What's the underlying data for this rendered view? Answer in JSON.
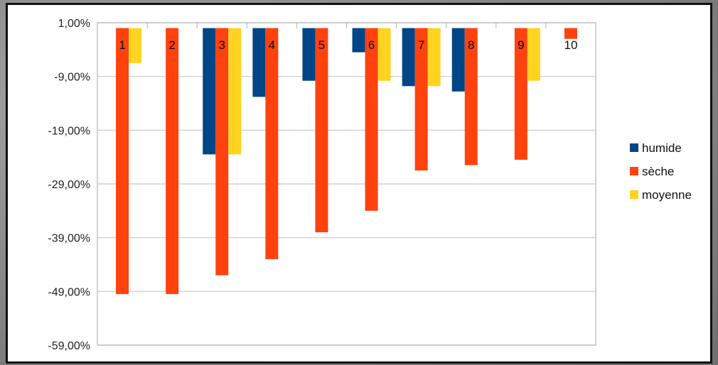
{
  "chart_data": {
    "type": "bar",
    "categories": [
      "1",
      "2",
      "3",
      "4",
      "5",
      "6",
      "7",
      "8",
      "9",
      "10"
    ],
    "series": [
      {
        "name": "humide",
        "color": "#004586",
        "values": [
          null,
          null,
          -23.5,
          -12.8,
          -9.8,
          -4.5,
          -10.8,
          -11.8,
          null,
          null
        ]
      },
      {
        "name": "sèche",
        "color": "#ff420e",
        "values": [
          -49.5,
          -49.5,
          -46.0,
          -43.0,
          -38.0,
          -34.0,
          -26.5,
          -25.5,
          -24.5,
          -2.0
        ]
      },
      {
        "name": "moyenne",
        "color": "#ffd320",
        "values": [
          -6.5,
          null,
          -23.5,
          null,
          null,
          -9.8,
          -10.8,
          null,
          -9.8,
          null
        ]
      }
    ],
    "y_ticks": [
      "1,00%",
      "-9,00%",
      "-19,00%",
      "-29,00%",
      "-39,00%",
      "-49,00%",
      "-59,00%"
    ],
    "ylim": [
      -59,
      1
    ],
    "grid": true,
    "legend": "right",
    "title": "",
    "xlabel": "",
    "ylabel": ""
  }
}
